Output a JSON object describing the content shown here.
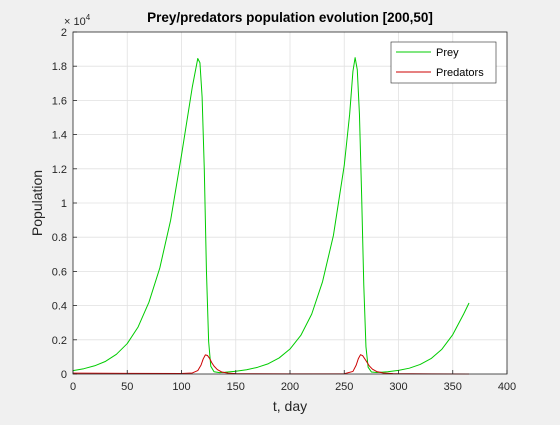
{
  "chart_data": {
    "type": "line",
    "title": "Prey/predators population evolution [200,50]",
    "xlabel": "t, day",
    "ylabel": "Population",
    "xlim": [
      0,
      400
    ],
    "ylim": [
      0,
      20000
    ],
    "y_exponent_label": "× 10",
    "y_exponent_power": "4",
    "x_ticks": [
      0,
      50,
      100,
      150,
      200,
      250,
      300,
      350,
      400
    ],
    "x_tick_labels": [
      "0",
      "50",
      "100",
      "150",
      "200",
      "250",
      "300",
      "350",
      "400"
    ],
    "y_ticks": [
      0,
      2000,
      4000,
      6000,
      8000,
      10000,
      12000,
      14000,
      16000,
      18000,
      20000
    ],
    "y_tick_labels": [
      "0",
      "0.2",
      "0.4",
      "0.6",
      "0.8",
      "1",
      "1.2",
      "1.4",
      "1.6",
      "1.8",
      "2"
    ],
    "grid": true,
    "legend_position": "top-right",
    "series": [
      {
        "name": "Prey",
        "color": "#00cc00",
        "points": [
          [
            0,
            200
          ],
          [
            10,
            310
          ],
          [
            20,
            480
          ],
          [
            30,
            740
          ],
          [
            40,
            1150
          ],
          [
            50,
            1780
          ],
          [
            60,
            2750
          ],
          [
            70,
            4200
          ],
          [
            80,
            6200
          ],
          [
            90,
            9000
          ],
          [
            100,
            12800
          ],
          [
            110,
            16800
          ],
          [
            115,
            18450
          ],
          [
            117,
            18200
          ],
          [
            119,
            16200
          ],
          [
            121,
            12000
          ],
          [
            123,
            6000
          ],
          [
            125,
            1900
          ],
          [
            127,
            450
          ],
          [
            130,
            130
          ],
          [
            135,
            80
          ],
          [
            140,
            100
          ],
          [
            150,
            160
          ],
          [
            160,
            250
          ],
          [
            170,
            390
          ],
          [
            180,
            600
          ],
          [
            190,
            940
          ],
          [
            200,
            1460
          ],
          [
            210,
            2260
          ],
          [
            220,
            3500
          ],
          [
            230,
            5400
          ],
          [
            240,
            8100
          ],
          [
            250,
            12200
          ],
          [
            255,
            15200
          ],
          [
            258,
            17700
          ],
          [
            260,
            18500
          ],
          [
            262,
            17800
          ],
          [
            264,
            15200
          ],
          [
            266,
            10500
          ],
          [
            268,
            5200
          ],
          [
            270,
            1600
          ],
          [
            272,
            400
          ],
          [
            275,
            120
          ],
          [
            280,
            90
          ],
          [
            290,
            130
          ],
          [
            300,
            210
          ],
          [
            310,
            340
          ],
          [
            320,
            560
          ],
          [
            330,
            900
          ],
          [
            340,
            1450
          ],
          [
            350,
            2300
          ],
          [
            360,
            3500
          ],
          [
            365,
            4150
          ]
        ]
      },
      {
        "name": "Predators",
        "color": "#cc0000",
        "points": [
          [
            0,
            50
          ],
          [
            50,
            40
          ],
          [
            100,
            30
          ],
          [
            110,
            60
          ],
          [
            115,
            200
          ],
          [
            118,
            520
          ],
          [
            120,
            880
          ],
          [
            122,
            1120
          ],
          [
            124,
            1080
          ],
          [
            126,
            900
          ],
          [
            128,
            650
          ],
          [
            130,
            460
          ],
          [
            133,
            260
          ],
          [
            137,
            120
          ],
          [
            143,
            50
          ],
          [
            150,
            20
          ],
          [
            200,
            5
          ],
          [
            250,
            15
          ],
          [
            258,
            150
          ],
          [
            261,
            520
          ],
          [
            263,
            900
          ],
          [
            265,
            1130
          ],
          [
            267,
            1070
          ],
          [
            270,
            780
          ],
          [
            273,
            480
          ],
          [
            276,
            280
          ],
          [
            280,
            140
          ],
          [
            286,
            60
          ],
          [
            295,
            20
          ],
          [
            330,
            5
          ],
          [
            365,
            3
          ]
        ]
      }
    ]
  }
}
